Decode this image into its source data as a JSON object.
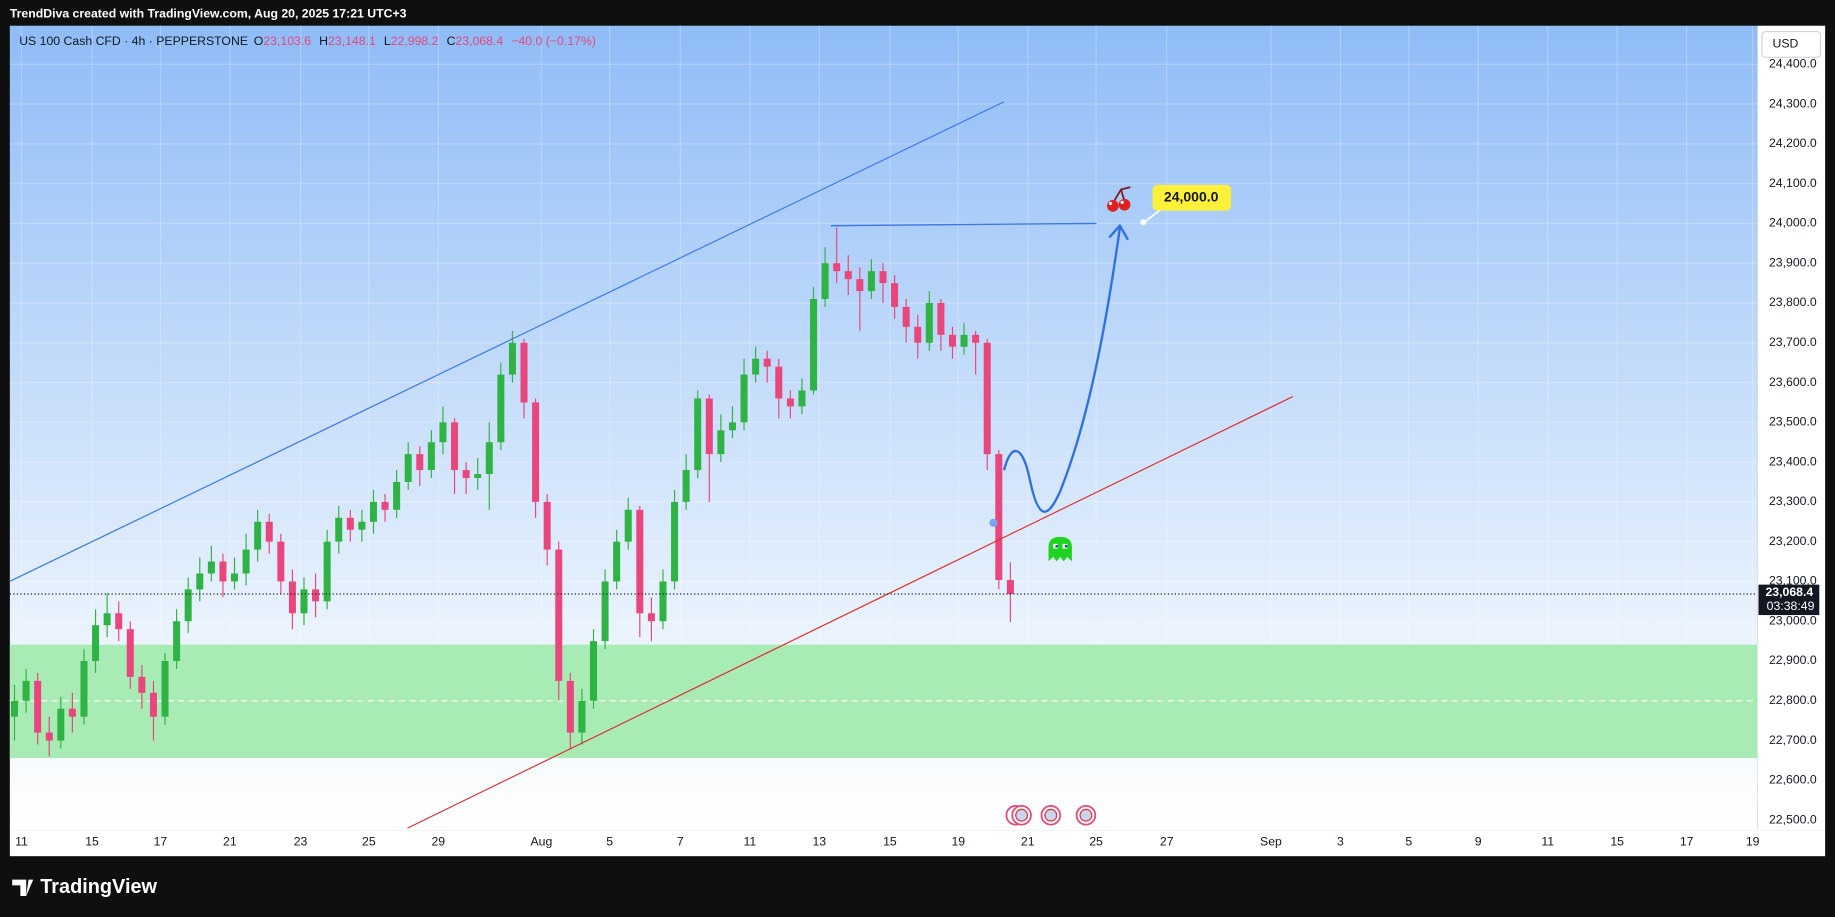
{
  "header": {
    "caption": "TrendDiva created with TradingView.com, Aug 20, 2025 17:21 UTC+3"
  },
  "footer": {
    "brand": "TradingView"
  },
  "chart_data": {
    "type": "candlestick",
    "legend": {
      "symbol": "US 100 Cash CFD · 4h · PEPPERSTONE",
      "ohlc": [
        {
          "key": "O",
          "value": "23,103.6"
        },
        {
          "key": "H",
          "value": "23,148.1"
        },
        {
          "key": "L",
          "value": "22,998.2"
        },
        {
          "key": "C",
          "value": "23,068.4"
        }
      ],
      "change": "−40.0 (−0.17%)"
    },
    "currency": "USD",
    "up_color": "#2fb344",
    "down_color": "#e8467c",
    "grid": true,
    "open": [
      22760,
      22800,
      22850,
      22720,
      22700,
      22780,
      22760,
      22900,
      22990,
      23020,
      22980,
      22860,
      22820,
      22760,
      22900,
      23000,
      23080,
      23120,
      23150,
      23100,
      23120,
      23180,
      23250,
      23200,
      23100,
      23020,
      23080,
      23050,
      23200,
      23260,
      23230,
      23250,
      23300,
      23280,
      23350,
      23420,
      23380,
      23450,
      23500,
      23380,
      23360,
      23370,
      23450,
      23620,
      23700,
      23550,
      23300,
      23180,
      22850,
      22720,
      22800,
      22950,
      23100,
      23200,
      23280,
      23020,
      23000,
      23100,
      23300,
      23380,
      23560,
      23420,
      23480,
      23500,
      23620,
      23660,
      23640,
      23560,
      23540,
      23580,
      23810,
      23900,
      23880,
      23860,
      23830,
      23880,
      23850,
      23790,
      23740,
      23700,
      23800,
      23720,
      23690,
      23720,
      23700,
      23420,
      23103.6
    ],
    "high": [
      22840,
      22880,
      22870,
      22760,
      22810,
      22820,
      22930,
      23030,
      23070,
      23050,
      23000,
      22890,
      22850,
      22920,
      23030,
      23110,
      23160,
      23190,
      23170,
      23160,
      23220,
      23280,
      23270,
      23220,
      23130,
      23110,
      23120,
      23230,
      23290,
      23280,
      23280,
      23330,
      23320,
      23380,
      23450,
      23440,
      23480,
      23540,
      23510,
      23400,
      23410,
      23500,
      23650,
      23730,
      23710,
      23560,
      23320,
      23200,
      22870,
      22830,
      22980,
      23130,
      23230,
      23310,
      23290,
      23060,
      23130,
      23330,
      23420,
      23580,
      23570,
      23520,
      23540,
      23660,
      23690,
      23680,
      23660,
      23580,
      23610,
      23840,
      23940,
      23990,
      23920,
      23890,
      23910,
      23900,
      23870,
      23810,
      23770,
      23830,
      23810,
      23740,
      23750,
      23730,
      23710,
      23430,
      23148.1
    ],
    "low": [
      22700,
      22770,
      22690,
      22660,
      22680,
      22720,
      22740,
      22870,
      22960,
      22950,
      22830,
      22780,
      22700,
      22740,
      22880,
      22970,
      23050,
      23100,
      23060,
      23080,
      23090,
      23150,
      23170,
      23070,
      22980,
      22990,
      23010,
      23030,
      23170,
      23200,
      23200,
      23220,
      23250,
      23260,
      23330,
      23340,
      23360,
      23420,
      23320,
      23320,
      23330,
      23280,
      23430,
      23600,
      23510,
      23260,
      23140,
      22800,
      22680,
      22690,
      22780,
      22930,
      23080,
      23180,
      22960,
      22950,
      22980,
      23080,
      23280,
      23360,
      23300,
      23400,
      23460,
      23480,
      23600,
      23600,
      23510,
      23510,
      23520,
      23570,
      23790,
      23850,
      23820,
      23730,
      23810,
      23800,
      23760,
      23700,
      23660,
      23680,
      23680,
      23660,
      23670,
      23620,
      23380,
      23080,
      22998.2
    ],
    "close": [
      22800,
      22850,
      22720,
      22700,
      22780,
      22760,
      22900,
      22990,
      23020,
      22980,
      22860,
      22820,
      22760,
      22900,
      23000,
      23080,
      23120,
      23150,
      23100,
      23120,
      23180,
      23250,
      23200,
      23100,
      23020,
      23080,
      23050,
      23200,
      23260,
      23230,
      23250,
      23300,
      23280,
      23350,
      23420,
      23380,
      23450,
      23500,
      23380,
      23360,
      23370,
      23450,
      23620,
      23700,
      23550,
      23300,
      23180,
      22850,
      22720,
      22800,
      22950,
      23100,
      23200,
      23280,
      23020,
      23000,
      23100,
      23300,
      23380,
      23560,
      23420,
      23480,
      23500,
      23620,
      23660,
      23640,
      23560,
      23540,
      23580,
      23810,
      23900,
      23880,
      23860,
      23830,
      23880,
      23850,
      23790,
      23740,
      23700,
      23800,
      23720,
      23690,
      23720,
      23700,
      23420,
      23103.6,
      23068.4
    ],
    "xlim": [
      -0.4,
      150.5
    ],
    "xticks": [
      {
        "value": 0.6,
        "label": "11"
      },
      {
        "value": 6.7,
        "label": "15"
      },
      {
        "value": 12.6,
        "label": "17"
      },
      {
        "value": 18.6,
        "label": "21"
      },
      {
        "value": 24.7,
        "label": "23"
      },
      {
        "value": 30.6,
        "label": "25"
      },
      {
        "value": 36.6,
        "label": "29"
      },
      {
        "value": 45.5,
        "label": "Aug"
      },
      {
        "value": 51.4,
        "label": "5"
      },
      {
        "value": 57.5,
        "label": "7"
      },
      {
        "value": 63.5,
        "label": "11"
      },
      {
        "value": 69.5,
        "label": "13"
      },
      {
        "value": 75.6,
        "label": "15"
      },
      {
        "value": 81.5,
        "label": "19"
      },
      {
        "value": 87.5,
        "label": "21"
      },
      {
        "value": 93.4,
        "label": "25"
      },
      {
        "value": 99.5,
        "label": "27"
      },
      {
        "value": 108.5,
        "label": "Sep"
      },
      {
        "value": 114.5,
        "label": "3"
      },
      {
        "value": 120.4,
        "label": "5"
      },
      {
        "value": 126.4,
        "label": "9"
      },
      {
        "value": 132.4,
        "label": "11"
      },
      {
        "value": 138.4,
        "label": "15"
      },
      {
        "value": 144.4,
        "label": "17"
      },
      {
        "value": 150.1,
        "label": "19"
      }
    ],
    "ylim": [
      22474,
      24497
    ],
    "yticks": [
      {
        "value": 22500,
        "label": "22,500.0"
      },
      {
        "value": 22600,
        "label": "22,600.0"
      },
      {
        "value": 22700,
        "label": "22,700.0"
      },
      {
        "value": 22800,
        "label": "22,800.0"
      },
      {
        "value": 22900,
        "label": "22,900.0"
      },
      {
        "value": 23000,
        "label": "23,000.0"
      },
      {
        "value": 23100,
        "label": "23,100.0"
      },
      {
        "value": 23200,
        "label": "23,200.0"
      },
      {
        "value": 23300,
        "label": "23,300.0"
      },
      {
        "value": 23400,
        "label": "23,400.0"
      },
      {
        "value": 23500,
        "label": "23,500.0"
      },
      {
        "value": 23600,
        "label": "23,600.0"
      },
      {
        "value": 23700,
        "label": "23,700.0"
      },
      {
        "value": 23800,
        "label": "23,800.0"
      },
      {
        "value": 23900,
        "label": "23,900.0"
      },
      {
        "value": 24000,
        "label": "24,000.0"
      },
      {
        "value": 24100,
        "label": "24,100.0"
      },
      {
        "value": 24200,
        "label": "24,200.0"
      },
      {
        "value": 24300,
        "label": "24,300.0"
      },
      {
        "value": 24400,
        "label": "24,400.0"
      }
    ],
    "last_price": {
      "value": 23068.4,
      "label": "23,068.4",
      "countdown": "03:38:49"
    },
    "zone": {
      "from": 22656,
      "to": 22941,
      "mid": 22800,
      "color": "#a8ebb5"
    },
    "target": {
      "value": 24000,
      "label": "24,000.0"
    }
  }
}
